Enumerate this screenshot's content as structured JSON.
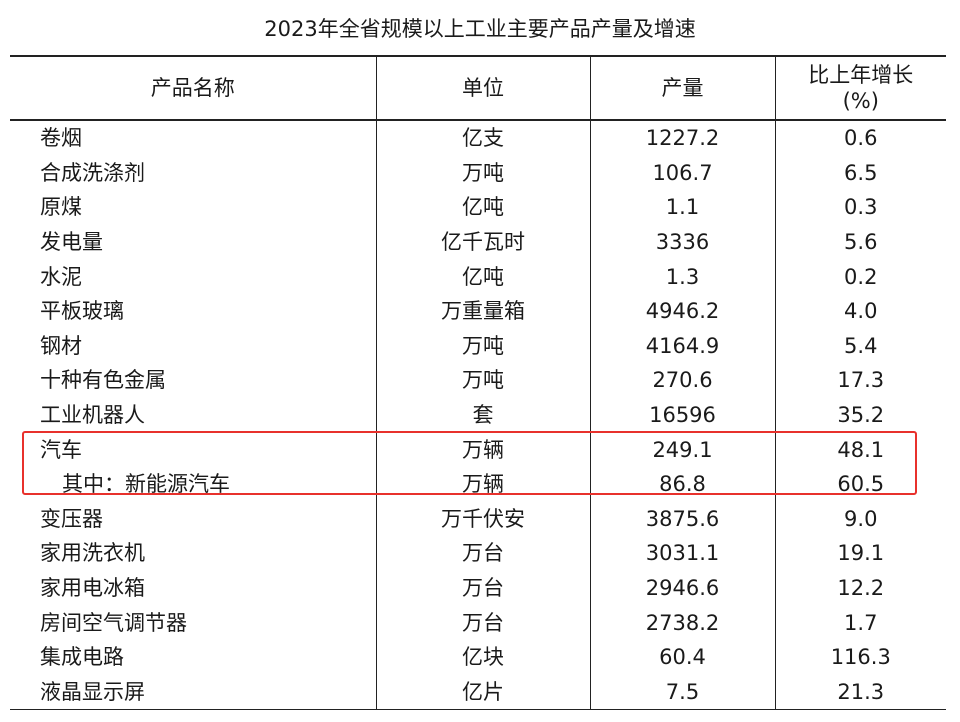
{
  "title": "2023年全省规模以上工业主要产品产量及增速",
  "headers": {
    "name": "产品名称",
    "unit": "单位",
    "output": "产量",
    "growth_line1": "比上年增长",
    "growth_line2": "(%)"
  },
  "rows": [
    {
      "name": "卷烟",
      "unit": "亿支",
      "output": "1227.2",
      "growth": "0.6"
    },
    {
      "name": "合成洗涤剂",
      "unit": "万吨",
      "output": "106.7",
      "growth": "6.5"
    },
    {
      "name": "原煤",
      "unit": "亿吨",
      "output": "1.1",
      "growth": "0.3"
    },
    {
      "name": "发电量",
      "unit": "亿千瓦时",
      "output": "3336",
      "growth": "5.6"
    },
    {
      "name": "水泥",
      "unit": "亿吨",
      "output": "1.3",
      "growth": "0.2"
    },
    {
      "name": "平板玻璃",
      "unit": "万重量箱",
      "output": "4946.2",
      "growth": "4.0"
    },
    {
      "name": "钢材",
      "unit": "万吨",
      "output": "4164.9",
      "growth": "5.4"
    },
    {
      "name": "十种有色金属",
      "unit": "万吨",
      "output": "270.6",
      "growth": "17.3"
    },
    {
      "name": "工业机器人",
      "unit": "套",
      "output": "16596",
      "growth": "35.2"
    },
    {
      "name": "汽车",
      "unit": "万辆",
      "output": "249.1",
      "growth": "48.1"
    },
    {
      "name": "其中：新能源汽车",
      "unit": "万辆",
      "output": "86.8",
      "growth": "60.5"
    },
    {
      "name": "变压器",
      "unit": "万千伏安",
      "output": "3875.6",
      "growth": "9.0"
    },
    {
      "name": "家用洗衣机",
      "unit": "万台",
      "output": "3031.1",
      "growth": "19.1"
    },
    {
      "name": "家用电冰箱",
      "unit": "万台",
      "output": "2946.6",
      "growth": "12.2"
    },
    {
      "name": "房间空气调节器",
      "unit": "万台",
      "output": "2738.2",
      "growth": "1.7"
    },
    {
      "name": "集成电路",
      "unit": "亿块",
      "output": "60.4",
      "growth": "116.3"
    },
    {
      "name": "液晶显示屏",
      "unit": "亿片",
      "output": "7.5",
      "growth": "21.3"
    }
  ],
  "highlight_color": "#e8312c"
}
